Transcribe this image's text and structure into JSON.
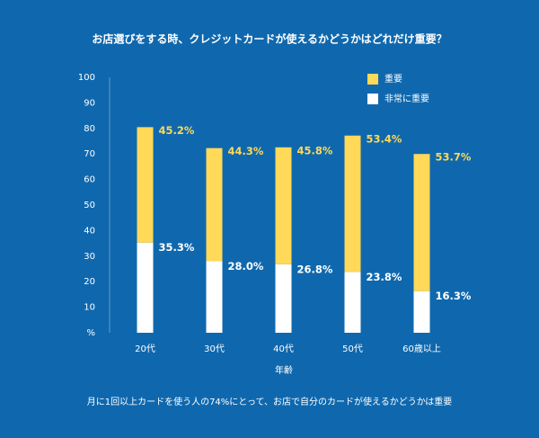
{
  "chart_data": {
    "type": "stacked-bar",
    "title": "お店選びをする時、クレジットカードが使えるかどうかはどれだけ重要？",
    "x_label": "年齢",
    "note": "月に1回以上カードを使う人の74%にとって、お店で自分のカードが使えるかどうかは重要",
    "categories": [
      "20代",
      "30代",
      "40代",
      "50代",
      "60歳以上"
    ],
    "series": [
      {
        "name": "非常に重要",
        "color": "#ffffff",
        "values": [
          35.3,
          28.0,
          26.8,
          23.8,
          16.3
        ],
        "value_labels": [
          "35.3%",
          "28.0%",
          "26.8%",
          "23.8%",
          "16.3%"
        ]
      },
      {
        "name": "重要",
        "color": "#ffd957",
        "values": [
          45.2,
          44.3,
          45.8,
          53.4,
          53.7
        ],
        "value_labels": [
          "45.2%",
          "44.3%",
          "45.8%",
          "53.4%",
          "53.7%"
        ]
      }
    ],
    "ylim": [
      0,
      100
    ],
    "yticks": [
      {
        "value": 0,
        "label": "%"
      },
      10,
      20,
      30,
      40,
      50,
      60,
      70,
      80,
      90,
      100
    ]
  }
}
